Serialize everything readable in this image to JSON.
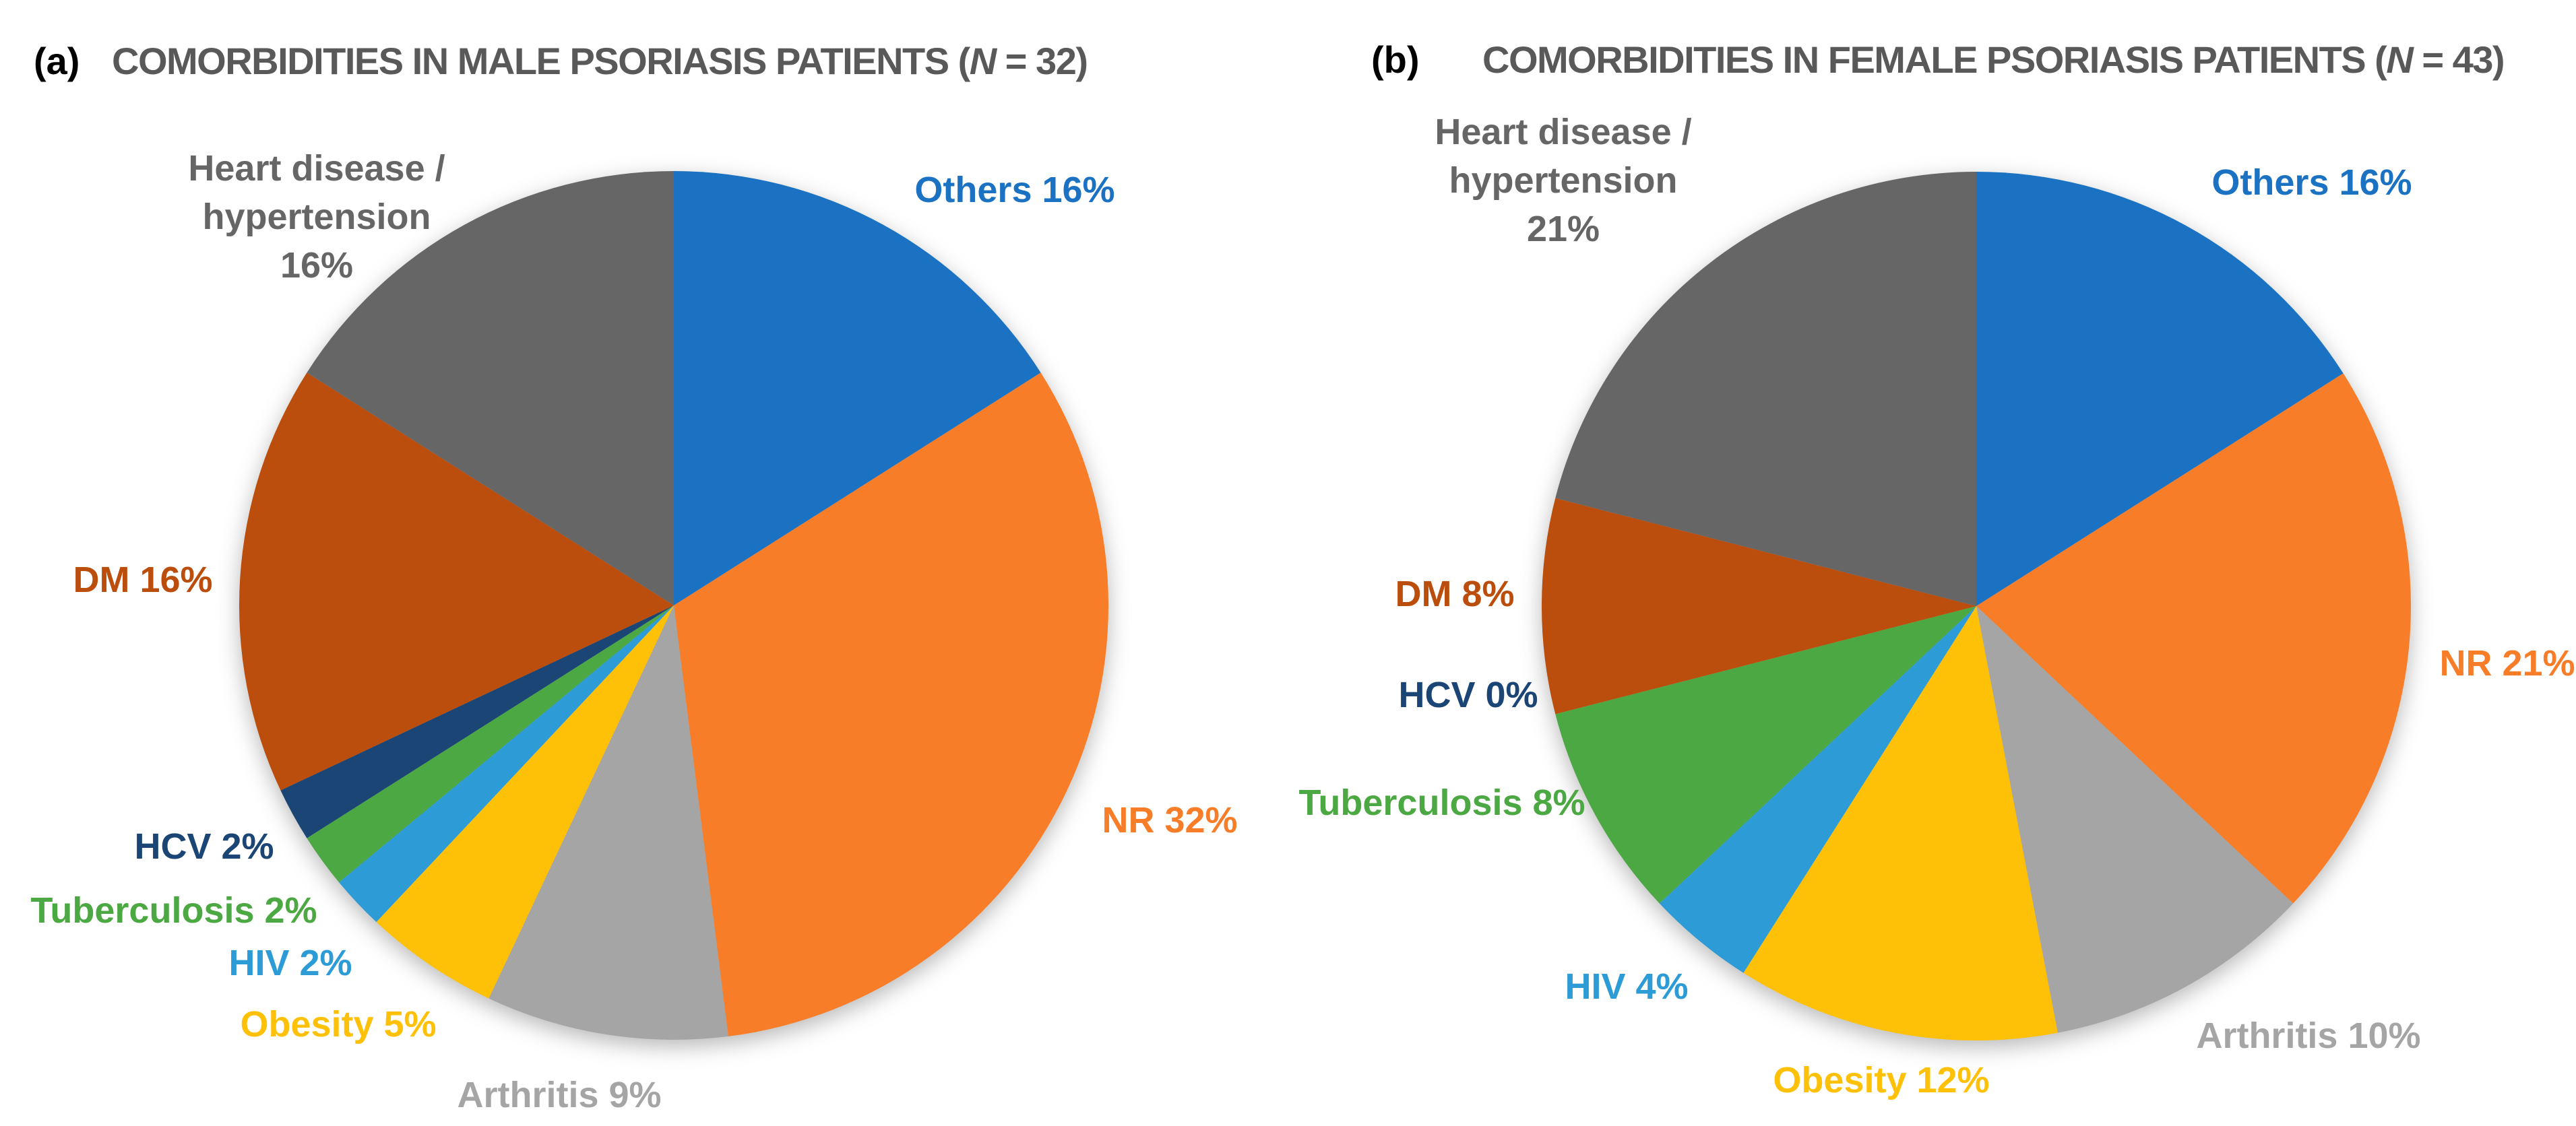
{
  "figure": {
    "background": "#FFFFFF",
    "title_color": "#595959"
  },
  "chart_data": [
    {
      "type": "pie",
      "panel_label": "(a)",
      "title_full": "COMORBIDITIES IN MALE PSORIASIS PATIENTS (N = 32)",
      "title_pre": "COMORBIDITIES IN MALE PSORIASIS PATIENTS (",
      "title_italic": "N",
      "title_post": " = 32)",
      "n_total": 32,
      "start_angle_deg": 0,
      "direction": "clockwise",
      "labels_position": "outside",
      "legend": "none",
      "slices": [
        {
          "name": "Others",
          "pct": 16,
          "color": "#1B72C2",
          "label_text": "Others 16%"
        },
        {
          "name": "NR",
          "pct": 32,
          "color": "#F87D28",
          "label_text": "NR 32%"
        },
        {
          "name": "Arthritis",
          "pct": 9,
          "color": "#A5A5A5",
          "label_text": "Arthritis 9%"
        },
        {
          "name": "Obesity",
          "pct": 5,
          "color": "#FFC008",
          "label_text": "Obesity 5%"
        },
        {
          "name": "HIV",
          "pct": 2,
          "color": "#2D9BD5",
          "label_text": "HIV 2%"
        },
        {
          "name": "Tuberculosis",
          "pct": 2,
          "color": "#4CA842",
          "label_text": "Tuberculosis 2%"
        },
        {
          "name": "HCV",
          "pct": 2,
          "color": "#1B4574",
          "label_text": "HCV 2%"
        },
        {
          "name": "DM",
          "pct": 16,
          "color": "#BB4D0D",
          "label_text": "DM 16%"
        },
        {
          "name": "Heart disease / hypertension",
          "pct": 16,
          "color": "#666666",
          "label_lines": [
            "Heart disease /",
            "hypertension",
            "16%"
          ]
        }
      ]
    },
    {
      "type": "pie",
      "panel_label": "(b)",
      "title_full": "COMORBIDITIES IN FEMALE PSORIASIS PATIENTS (N = 43)",
      "title_pre": "COMORBIDITIES IN FEMALE PSORIASIS PATIENTS (",
      "title_italic": "N",
      "title_post": " = 43)",
      "n_total": 43,
      "start_angle_deg": 0,
      "direction": "clockwise",
      "labels_position": "outside",
      "legend": "none",
      "slices": [
        {
          "name": "Others",
          "pct": 16,
          "color": "#1B72C2",
          "label_text": "Others 16%"
        },
        {
          "name": "NR",
          "pct": 21,
          "color": "#F87D28",
          "label_text": "NR 21%"
        },
        {
          "name": "Arthritis",
          "pct": 10,
          "color": "#A5A5A5",
          "label_text": "Arthritis 10%"
        },
        {
          "name": "Obesity",
          "pct": 12,
          "color": "#FFC008",
          "label_text": "Obesity 12%"
        },
        {
          "name": "HIV",
          "pct": 4,
          "color": "#2D9BD5",
          "label_text": "HIV 4%"
        },
        {
          "name": "Tuberculosis",
          "pct": 8,
          "color": "#4CA842",
          "label_text": "Tuberculosis 8%"
        },
        {
          "name": "HCV",
          "pct": 0,
          "color": "#1B4574",
          "label_text": "HCV 0%"
        },
        {
          "name": "DM",
          "pct": 8,
          "color": "#BB4D0D",
          "label_text": "DM 8%"
        },
        {
          "name": "Heart disease / hypertension",
          "pct": 21,
          "color": "#666666",
          "label_lines": [
            "Heart disease /",
            "hypertension",
            "21%"
          ]
        }
      ]
    }
  ]
}
